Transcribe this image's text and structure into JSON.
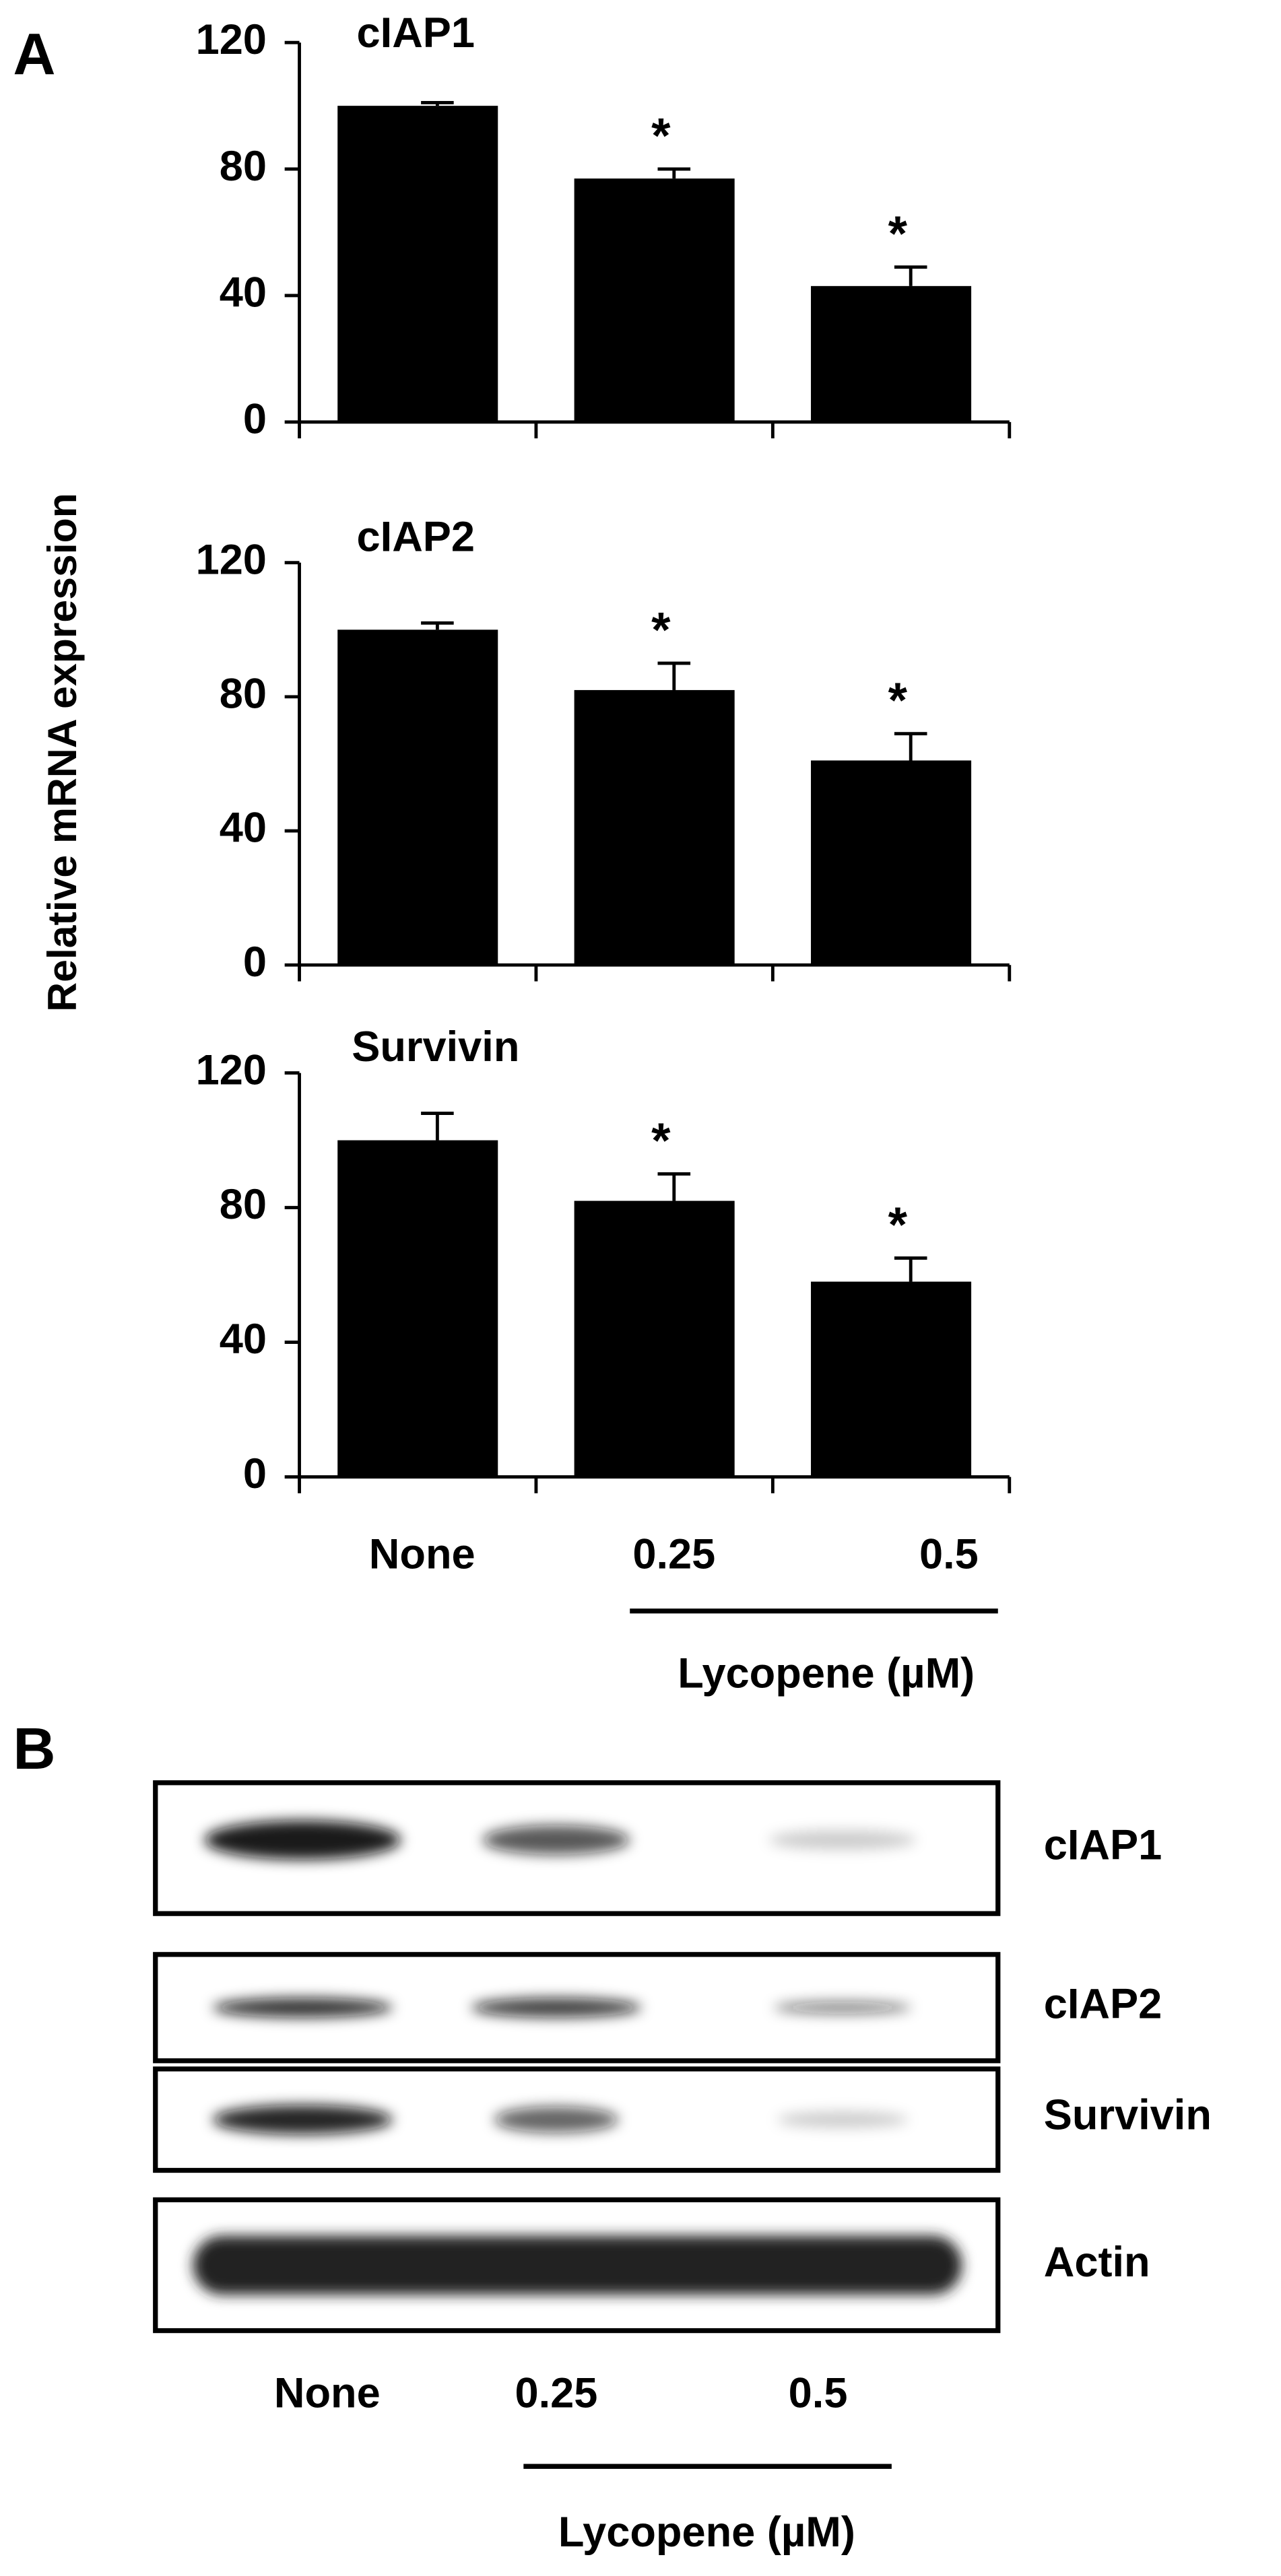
{
  "panel_a": {
    "label": "A",
    "ylabel": "Relative  mRNA expression",
    "categories": [
      "None",
      "0.25",
      "0.5"
    ],
    "xlabel": "Lycopene (µM)"
  },
  "chart_data": [
    {
      "type": "bar",
      "title": "cIAP1",
      "values": [
        100,
        77,
        43
      ],
      "errors": [
        1,
        3,
        6
      ],
      "annotations": [
        null,
        "*",
        "*"
      ],
      "color": "#000000",
      "ylim": [
        0,
        120
      ],
      "yticks": [
        0,
        40,
        80,
        120
      ]
    },
    {
      "type": "bar",
      "title": "cIAP2",
      "values": [
        100,
        82,
        61
      ],
      "errors": [
        2,
        8,
        8
      ],
      "annotations": [
        null,
        "*",
        "*"
      ],
      "color": "#000000",
      "ylim": [
        0,
        120
      ],
      "yticks": [
        0,
        40,
        80,
        120
      ]
    },
    {
      "type": "bar",
      "title": "Survivin",
      "values": [
        100,
        82,
        58
      ],
      "errors": [
        8,
        8,
        7
      ],
      "annotations": [
        null,
        "*",
        "*"
      ],
      "color": "#000000",
      "ylim": [
        0,
        120
      ],
      "yticks": [
        0,
        40,
        80,
        120
      ]
    }
  ],
  "panel_b": {
    "label": "B",
    "rows": [
      "cIAP1",
      "cIAP2",
      "Survivin",
      "Actin"
    ],
    "lanes": [
      "None",
      "0.25",
      "0.5"
    ],
    "xlabel": "Lycopene (µM)"
  }
}
